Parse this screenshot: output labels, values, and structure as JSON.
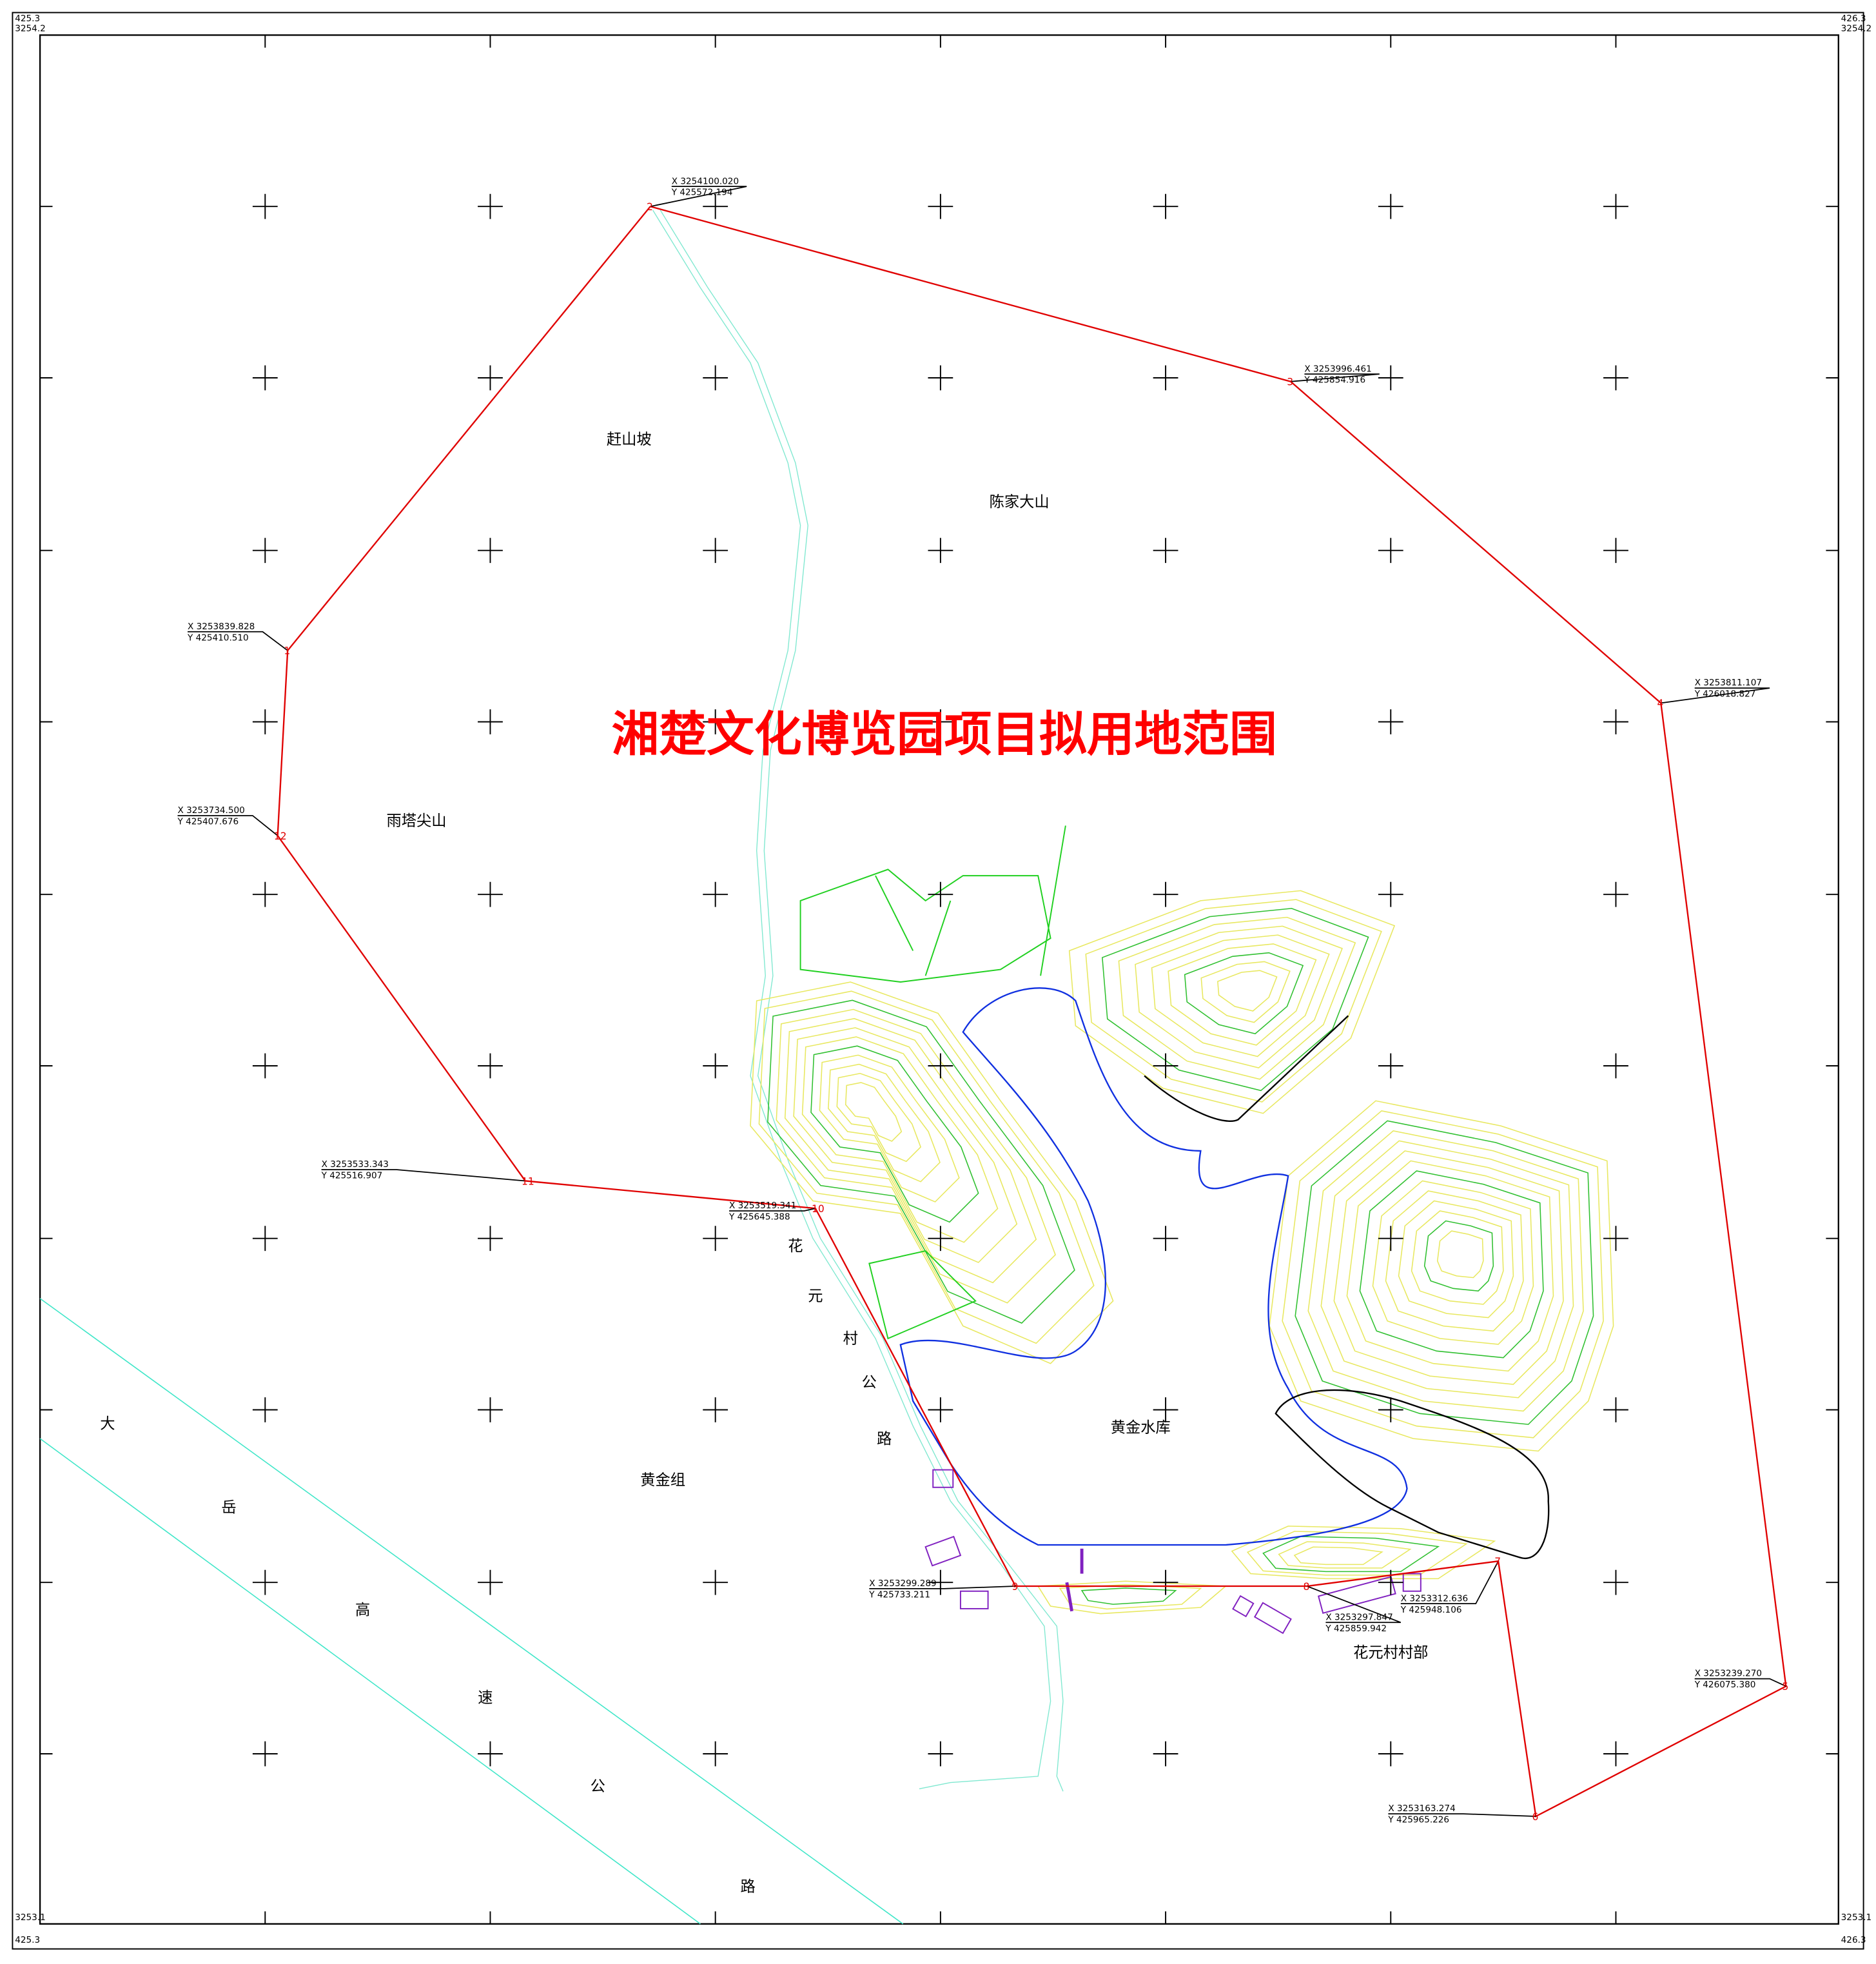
{
  "title": "湘楚文化博览园项目拟用地范围",
  "corners": [
    "425.3",
    "3254.2",
    "426.3",
    "3254.2",
    "3253.1",
    "425.3",
    "3253.1",
    "426.3"
  ],
  "places": [
    "赶山坡",
    "陈家大山",
    "雨塔尖山",
    "黄金水库",
    "黄金组",
    "花元村村部"
  ],
  "road": [
    "花",
    "元",
    "村",
    "公",
    "路"
  ],
  "highway": [
    "大",
    "岳",
    "高",
    "速",
    "公",
    "路"
  ],
  "points": [
    {
      "id": "1",
      "x": "X 3253839.828",
      "y": "Y 425410.510"
    },
    {
      "id": "2",
      "x": "X 3254100.020",
      "y": "Y 425572.194"
    },
    {
      "id": "3",
      "x": "X 3253996.461",
      "y": "Y 425854.916"
    },
    {
      "id": "4",
      "x": "X 3253811.107",
      "y": "Y 426018.827"
    },
    {
      "id": "5",
      "x": "X 3253239.270",
      "y": "Y 426075.380"
    },
    {
      "id": "6",
      "x": "X 3253163.274",
      "y": "Y 425965.226"
    },
    {
      "id": "7",
      "x": "X 3253312.636",
      "y": "Y 425948.106"
    },
    {
      "id": "8",
      "x": "X 3253297.847",
      "y": "Y 425859.942"
    },
    {
      "id": "9",
      "x": "X 3253299.289",
      "y": "Y 425733.211"
    },
    {
      "id": "10",
      "x": "X 3253519.341",
      "y": "Y 425645.388"
    },
    {
      "id": "11",
      "x": "X 3253533.343",
      "y": "Y 425516.907"
    },
    {
      "id": "12",
      "x": "X 3253734.500",
      "y": "Y 425407.676"
    }
  ]
}
